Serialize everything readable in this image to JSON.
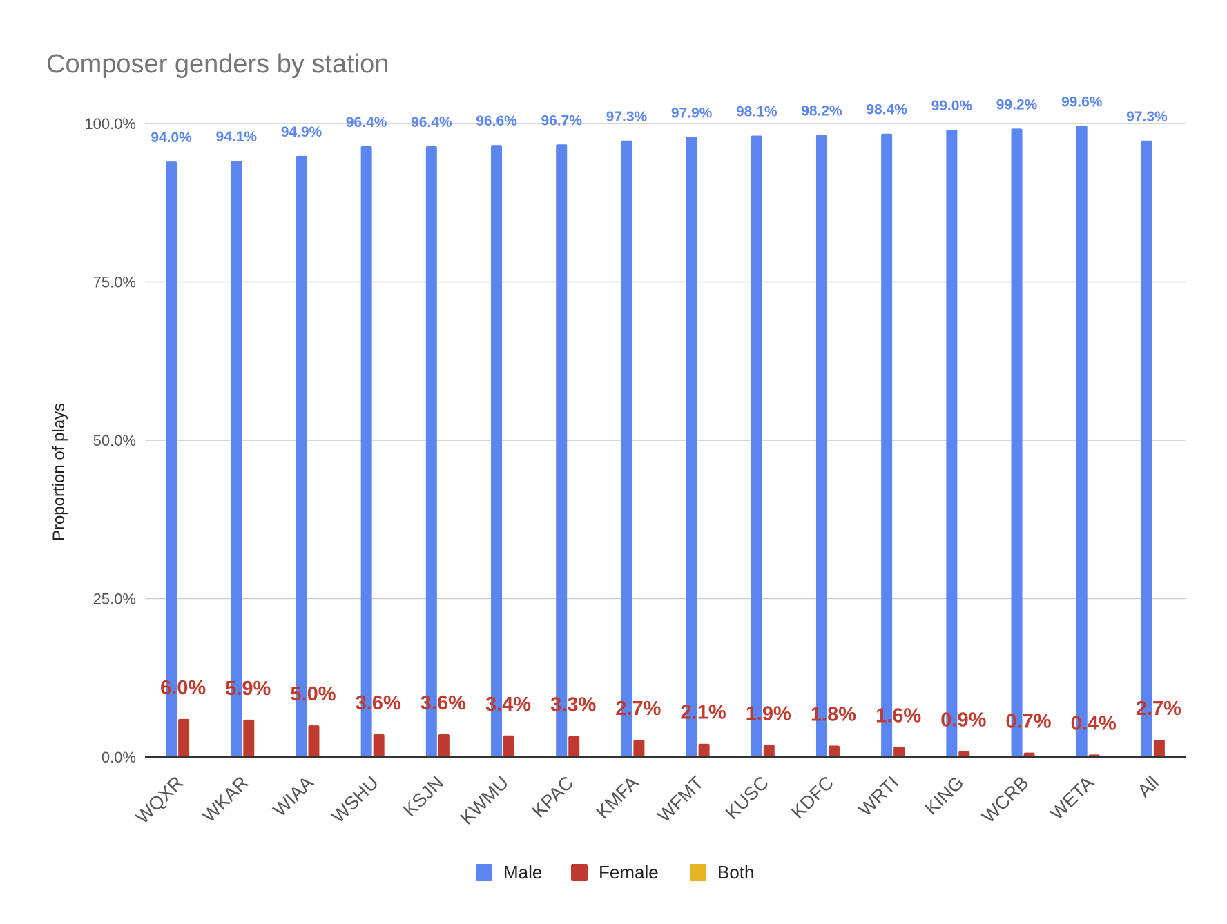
{
  "chart_data": {
    "type": "bar",
    "title": "Composer genders by station",
    "ylabel": "Proportion of plays",
    "xlabel": "",
    "ylim": [
      0,
      1
    ],
    "yticks": [
      0,
      0.25,
      0.5,
      0.75,
      1.0
    ],
    "ytick_labels": [
      "0.0%",
      "25.0%",
      "50.0%",
      "75.0%",
      "100.0%"
    ],
    "grid": true,
    "legend_position": "bottom",
    "categories": [
      "WQXR",
      "WKAR",
      "WIAA",
      "WSHU",
      "KSJN",
      "KWMU",
      "KPAC",
      "KMFA",
      "WFMT",
      "KUSC",
      "KDFC",
      "WRTI",
      "KING",
      "WCRB",
      "WETA",
      "All"
    ],
    "series": [
      {
        "name": "Male",
        "color": "#5b86ef",
        "values": [
          0.94,
          0.941,
          0.949,
          0.964,
          0.964,
          0.966,
          0.967,
          0.973,
          0.979,
          0.981,
          0.982,
          0.984,
          0.99,
          0.992,
          0.996,
          0.973
        ],
        "labels": [
          "94.0%",
          "94.1%",
          "94.9%",
          "96.4%",
          "96.4%",
          "96.6%",
          "96.7%",
          "97.3%",
          "97.9%",
          "98.1%",
          "98.2%",
          "98.4%",
          "99.0%",
          "99.2%",
          "99.6%",
          "97.3%"
        ]
      },
      {
        "name": "Female",
        "color": "#bf3b30",
        "values": [
          0.06,
          0.059,
          0.05,
          0.036,
          0.036,
          0.034,
          0.033,
          0.027,
          0.021,
          0.019,
          0.018,
          0.016,
          0.009,
          0.007,
          0.004,
          0.027
        ],
        "labels": [
          "6.0%",
          "5.9%",
          "5.0%",
          "3.6%",
          "3.6%",
          "3.4%",
          "3.3%",
          "2.7%",
          "2.1%",
          "1.9%",
          "1.8%",
          "1.6%",
          "0.9%",
          "0.7%",
          "0.4%",
          "2.7%"
        ]
      },
      {
        "name": "Both",
        "color": "#e6b325",
        "values": [
          0,
          0,
          0,
          0,
          0,
          0,
          0,
          0,
          0,
          0,
          0,
          0,
          0.001,
          0,
          0,
          0
        ],
        "labels": []
      }
    ]
  }
}
